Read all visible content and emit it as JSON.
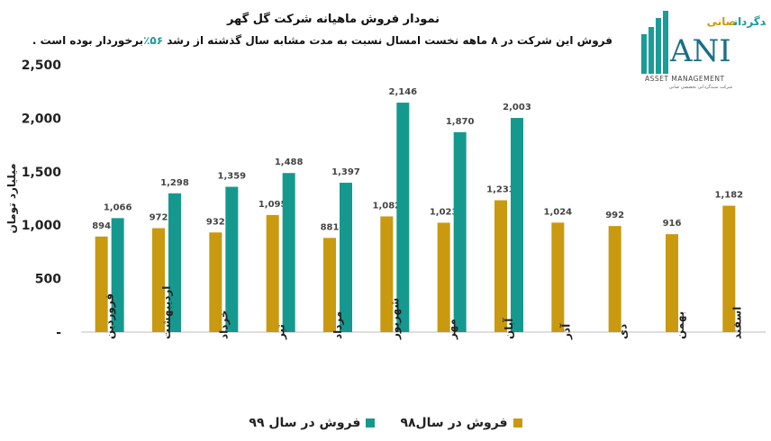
{
  "header": {
    "title": "نمودار فروش ماهیانه شرکت گل گهر",
    "subtitle_before": "فروش این شرکت در ۸ ماهه نخست امسال نسبت به مدت مشابه سال گذشته از رشد ",
    "subtitle_highlight": "۵۶٪",
    "subtitle_after": "برخوردار بوده است ."
  },
  "logo": {
    "brand_fa": "سبدگردان",
    "brand_fa_accent": "صانی",
    "wordmark": "ANI",
    "tagline": "ASSET MANAGEMENT",
    "note": "شرکت سبدگردانی تخصصی صانی"
  },
  "colors": {
    "series98": "#c9990f",
    "series99": "#15998f",
    "highlight": "#1a9c98"
  },
  "chart_data": {
    "type": "bar",
    "ylabel": "میلیارد تومان",
    "ylim": [
      0,
      2500
    ],
    "ytick_values": [
      0,
      500,
      1000,
      1500,
      2000,
      2500
    ],
    "ytick_labels": [
      "-",
      "500",
      "1,000",
      "1,500",
      "2,000",
      "2,500"
    ],
    "categories": [
      "فروردین",
      "اردیبهشت",
      "خرداد",
      "تیر",
      "مرداد",
      "شهریور",
      "مهر",
      "آبان",
      "آذر",
      "دی",
      "بهمن",
      "اسفند"
    ],
    "series": [
      {
        "name": "فروش در سال۹۸",
        "values": [
          894,
          972,
          932,
          1095,
          881,
          1082,
          1023,
          1233,
          1024,
          992,
          916,
          1182
        ]
      },
      {
        "name": "فروش در سال ۹۹",
        "values": [
          1066,
          1298,
          1359,
          1488,
          1397,
          2146,
          1870,
          2003,
          null,
          null,
          null,
          null
        ]
      }
    ],
    "legend": "bottom",
    "grid": false
  }
}
